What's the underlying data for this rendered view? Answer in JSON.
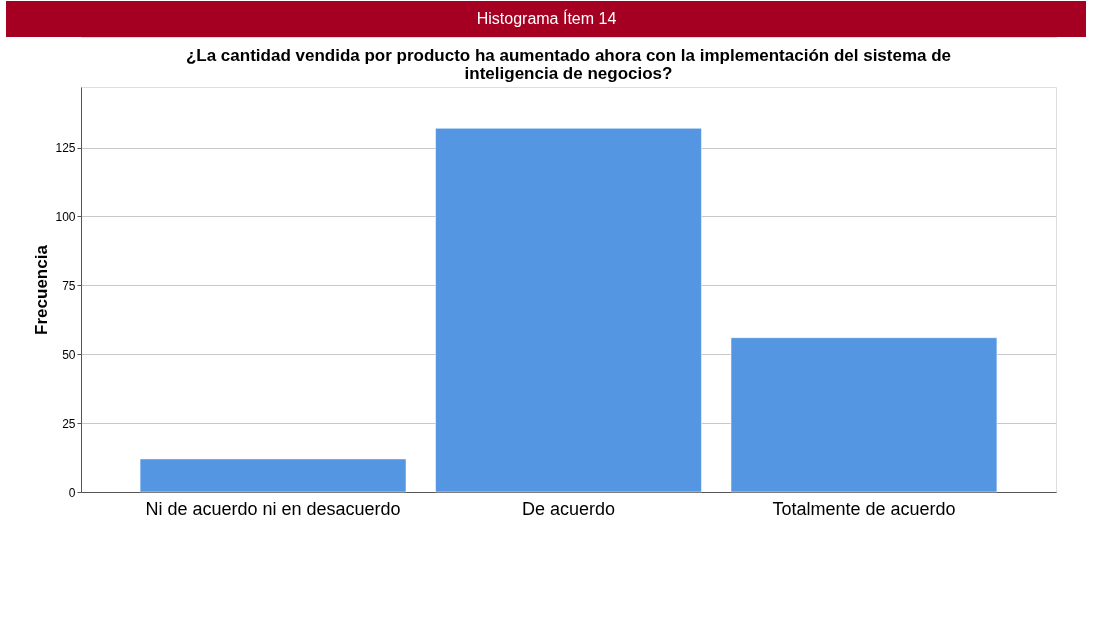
{
  "chart_data": {
    "type": "bar",
    "title": "Histograma Ítem 14",
    "subtitle": "¿La cantidad vendida por producto ha aumentado ahora con la implementación del sistema de inteligencia de negocios?",
    "ylabel": "Frecuencia",
    "categories": [
      "Ni de acuerdo ni en desacuerdo",
      "De acuerdo",
      "Totalmente de acuerdo"
    ],
    "values": [
      12,
      132,
      56
    ],
    "color": "#5596e3",
    "ylim": [
      0,
      147
    ],
    "yticks": [
      0,
      25,
      50,
      75,
      100,
      125
    ],
    "grid": "y"
  }
}
